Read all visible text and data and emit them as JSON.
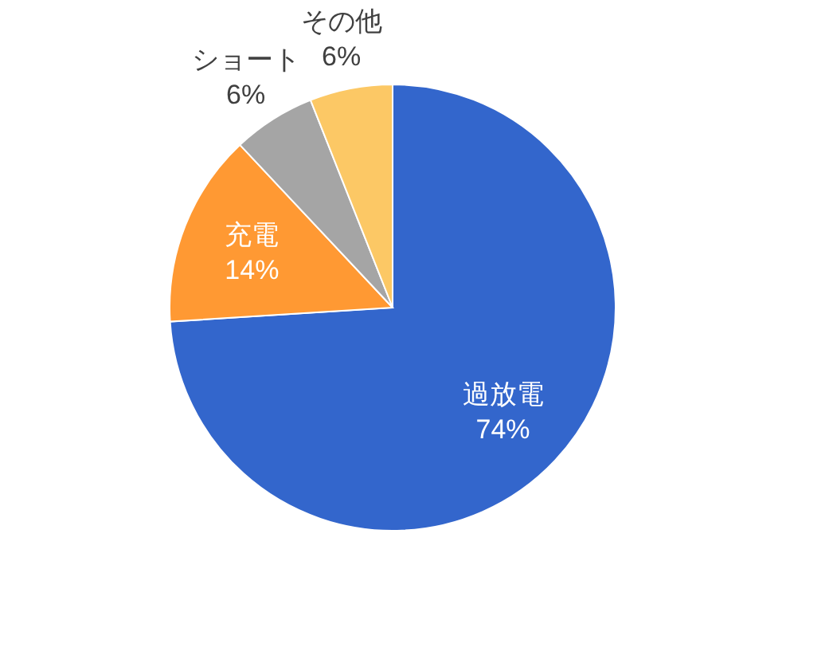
{
  "chart_data": {
    "type": "pie",
    "categories": [
      "過放電",
      "充電",
      "ショート",
      "その他"
    ],
    "values": [
      74,
      14,
      6,
      6
    ],
    "value_labels": [
      "74%",
      "14%",
      "6%",
      "6%"
    ],
    "colors": [
      "#3366cc",
      "#ff9933",
      "#a5a5a5",
      "#fcc865"
    ],
    "legend": false
  }
}
